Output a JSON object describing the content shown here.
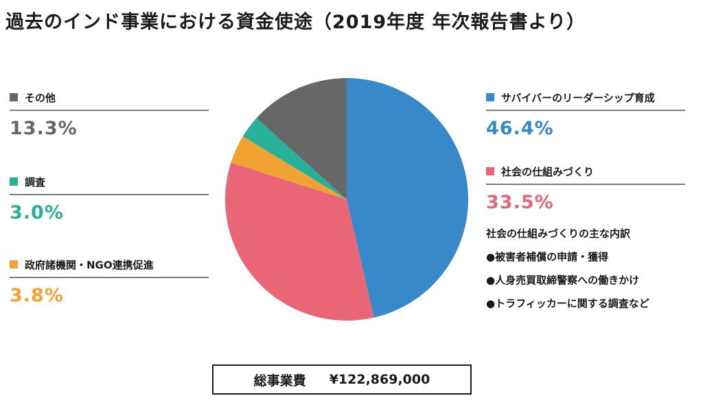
{
  "title": "過去のインド事業における資金使途（2019年度 年次報告書より）",
  "chart_data": {
    "type": "pie",
    "title": "過去のインド事業における資金使途（2019年度 年次報告書より）",
    "slices": [
      {
        "label": "サバイバーのリーダーシップ育成",
        "value": 46.4,
        "display": "46.4%",
        "color": "#3889ca"
      },
      {
        "label": "社会の仕組みづくり",
        "value": 33.5,
        "display": "33.5%",
        "color": "#e96677"
      },
      {
        "label": "政府諸機関・NGO連携促進",
        "value": 3.8,
        "display": "3.8%",
        "color": "#f2a233"
      },
      {
        "label": "調査",
        "value": 3.0,
        "display": "3.0%",
        "color": "#27b09a"
      },
      {
        "label": "その他",
        "value": 13.3,
        "display": "13.3%",
        "color": "#676767"
      }
    ]
  },
  "breakdown": {
    "title": "社会の仕組みづくりの主な内訳",
    "items": [
      "●被害者補償の申請・獲得",
      "●人身売買取締警察への働きかけ",
      "●トラフィッカーに関する調査など"
    ]
  },
  "total": {
    "label": "総事業費",
    "amount": "¥122,869,000"
  }
}
